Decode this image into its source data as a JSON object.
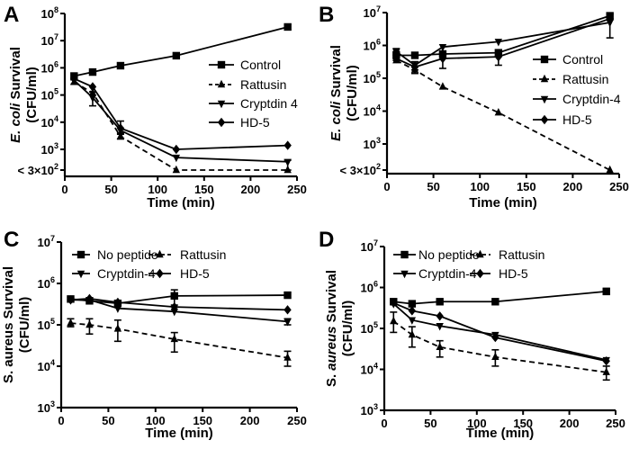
{
  "chart_data": [
    {
      "panel": "A",
      "type": "line",
      "yscale": "log",
      "xlabel": "Time (min)",
      "ylabel": [
        [
          {
            "text": "E. coli",
            "italic": true
          },
          {
            "text": " Survival",
            "italic": false
          }
        ],
        [
          {
            "text": "(CFU/ml)",
            "italic": false
          }
        ]
      ],
      "xlim": [
        0,
        250
      ],
      "xticks": [
        0,
        50,
        100,
        150,
        200,
        250
      ],
      "yticks": [
        {
          "base": "10",
          "exp": "8",
          "value": 100000000.0
        },
        {
          "base": "10",
          "exp": "7",
          "value": 10000000.0
        },
        {
          "base": "10",
          "exp": "6",
          "value": 1000000.0
        },
        {
          "base": "10",
          "exp": "5",
          "value": 100000.0
        },
        {
          "base": "10",
          "exp": "4",
          "value": 10000.0
        },
        {
          "base": "10",
          "exp": "3",
          "value": 1000.0
        }
      ],
      "floor": {
        "base": "< 3×10",
        "exp": "2",
        "value": 300
      },
      "legend_placement": "center-right",
      "series": [
        {
          "name": "Control",
          "marker": "square",
          "dashed": false,
          "x": [
            10,
            30,
            60,
            120,
            240
          ],
          "y": [
            500000.0,
            700000.0,
            1200000.0,
            2800000.0,
            32000000.0
          ],
          "err": [
            null,
            null,
            null,
            null,
            null
          ]
        },
        {
          "name": "Rattusin",
          "marker": "triangle-up",
          "dashed": true,
          "x": [
            10,
            30,
            60,
            120,
            240
          ],
          "y": [
            300000.0,
            120000.0,
            3000.0,
            300,
            300
          ],
          "err": [
            [
              250000.0,
              360000.0
            ],
            null,
            [
              2400.0,
              3600.0
            ],
            null,
            null
          ]
        },
        {
          "name": "Cryptdin 4",
          "marker": "triangle-down",
          "dashed": false,
          "x": [
            10,
            30,
            60,
            120,
            240
          ],
          "y": [
            350000.0,
            80000.0,
            5000.0,
            500.0,
            350.0
          ],
          "err": [
            null,
            [
              40000.0,
              130000.0
            ],
            [
              4000.0,
              11000.0
            ],
            null,
            [
              300.0,
              400.0
            ]
          ]
        },
        {
          "name": "HD-5",
          "marker": "diamond",
          "dashed": false,
          "x": [
            10,
            30,
            60,
            120,
            240
          ],
          "y": [
            400000.0,
            200000.0,
            6000.0,
            1000.0,
            1400.0
          ],
          "err": [
            null,
            null,
            null,
            null,
            null
          ]
        }
      ]
    },
    {
      "panel": "B",
      "type": "line",
      "yscale": "log",
      "xlabel": "Time (min)",
      "ylabel": [
        [
          {
            "text": "E. coli",
            "italic": true
          },
          {
            "text": " Survival",
            "italic": false
          }
        ],
        [
          {
            "text": "(CFU/ml)",
            "italic": false
          }
        ]
      ],
      "xlim": [
        0,
        250
      ],
      "xticks": [
        0,
        50,
        100,
        150,
        200,
        250
      ],
      "yticks": [
        {
          "base": "10",
          "exp": "7",
          "value": 10000000.0
        },
        {
          "base": "10",
          "exp": "6",
          "value": 1000000.0
        },
        {
          "base": "10",
          "exp": "5",
          "value": 100000.0
        },
        {
          "base": "10",
          "exp": "4",
          "value": 10000.0
        },
        {
          "base": "10",
          "exp": "3",
          "value": 1000.0
        }
      ],
      "floor": {
        "base": "< 3×10",
        "exp": "2",
        "value": 300
      },
      "legend_placement": "center-right",
      "series": [
        {
          "name": "Control",
          "marker": "square",
          "dashed": false,
          "x": [
            10,
            30,
            60,
            120,
            240
          ],
          "y": [
            500000.0,
            500000.0,
            550000.0,
            600000.0,
            8000000.0
          ],
          "err": [
            [
              350000.0,
              650000.0
            ],
            null,
            null,
            null,
            [
              6500000.0,
              9000000.0
            ]
          ]
        },
        {
          "name": "Rattusin",
          "marker": "triangle-up",
          "dashed": true,
          "x": [
            10,
            30,
            60,
            120,
            240
          ],
          "y": [
            350000.0,
            180000.0,
            55000.0,
            9000.0,
            300
          ],
          "err": [
            null,
            [
              140000.0,
              220000.0
            ],
            null,
            null,
            null
          ]
        },
        {
          "name": "Cryptdin-4",
          "marker": "triangle-down",
          "dashed": false,
          "x": [
            10,
            30,
            60,
            120,
            240
          ],
          "y": [
            650000.0,
            250000.0,
            900000.0,
            1300000.0,
            5000000.0
          ],
          "err": [
            [
              500000.0,
              800000.0
            ],
            [
              180000.0,
              320000.0
            ],
            null,
            null,
            [
              1700000.0,
              6000000.0
            ]
          ]
        },
        {
          "name": "HD-5",
          "marker": "diamond",
          "dashed": false,
          "x": [
            10,
            30,
            60,
            120,
            240
          ],
          "y": [
            400000.0,
            220000.0,
            400000.0,
            450000.0,
            6500000.0
          ],
          "err": [
            null,
            null,
            [
              200000.0,
              600000.0
            ],
            [
              250000.0,
              600000.0
            ],
            null
          ]
        }
      ]
    },
    {
      "panel": "C",
      "type": "line",
      "yscale": "log",
      "xlabel": "Time (min)",
      "ylabel": [
        [
          {
            "text": "S. aureus Survival",
            "italic": false
          }
        ],
        [
          {
            "text": "(CFU/ml)",
            "italic": false
          }
        ]
      ],
      "xlim": [
        0,
        250
      ],
      "xticks": [
        0,
        50,
        100,
        150,
        200,
        250
      ],
      "yticks": [
        {
          "base": "10",
          "exp": "7",
          "value": 10000000.0
        },
        {
          "base": "10",
          "exp": "6",
          "value": 1000000.0
        },
        {
          "base": "10",
          "exp": "5",
          "value": 100000.0
        },
        {
          "base": "10",
          "exp": "4",
          "value": 10000.0
        },
        {
          "base": "10",
          "exp": "3",
          "value": 1000.0
        }
      ],
      "floor": null,
      "legend_placement": "top",
      "series": [
        {
          "name": "No peptide",
          "marker": "square",
          "dashed": false,
          "x": [
            10,
            30,
            60,
            120,
            240
          ],
          "y": [
            420000.0,
            380000.0,
            330000.0,
            500000.0,
            520000.0
          ],
          "err": [
            null,
            null,
            null,
            [
              300000.0,
              700000.0
            ],
            null
          ]
        },
        {
          "name": "Rattusin",
          "marker": "triangle-up",
          "dashed": true,
          "x": [
            10,
            30,
            60,
            120,
            240
          ],
          "y": [
            110000.0,
            100000.0,
            80000.0,
            45000.0,
            16000.0
          ],
          "err": [
            [
              90000.0,
              140000.0
            ],
            [
              60000.0,
              140000.0
            ],
            [
              40000.0,
              130000.0
            ],
            [
              22000.0,
              65000.0
            ],
            [
              10000.0,
              23000.0
            ]
          ]
        },
        {
          "name": "Cryptdin-4",
          "marker": "triangle-down",
          "dashed": false,
          "x": [
            10,
            30,
            60,
            120,
            240
          ],
          "y": [
            400000.0,
            400000.0,
            250000.0,
            210000.0,
            120000.0
          ],
          "err": [
            null,
            null,
            null,
            null,
            [
              100000.0,
              140000.0
            ]
          ]
        },
        {
          "name": "HD-5",
          "marker": "diamond",
          "dashed": false,
          "x": [
            10,
            30,
            60,
            120,
            240
          ],
          "y": [
            400000.0,
            430000.0,
            350000.0,
            270000.0,
            230000.0
          ],
          "err": [
            null,
            null,
            null,
            null,
            null
          ]
        }
      ]
    },
    {
      "panel": "D",
      "type": "line",
      "yscale": "log",
      "xlabel": "Time (min)",
      "ylabel": [
        [
          {
            "text": "S. ",
            "italic": false
          },
          {
            "text": "aureus",
            "italic": true
          },
          {
            "text": " Survival",
            "italic": false
          }
        ],
        [
          {
            "text": "(CFU/ml)",
            "italic": false
          }
        ]
      ],
      "xlim": [
        0,
        250
      ],
      "xticks": [
        0,
        50,
        100,
        150,
        200,
        250
      ],
      "yticks": [
        {
          "base": "10",
          "exp": "7",
          "value": 10000000.0
        },
        {
          "base": "10",
          "exp": "6",
          "value": 1000000.0
        },
        {
          "base": "10",
          "exp": "5",
          "value": 100000.0
        },
        {
          "base": "10",
          "exp": "4",
          "value": 10000.0
        },
        {
          "base": "10",
          "exp": "3",
          "value": 1000.0
        }
      ],
      "floor": null,
      "legend_placement": "top",
      "series": [
        {
          "name": "No peptide",
          "marker": "square",
          "dashed": false,
          "x": [
            10,
            30,
            60,
            120,
            240
          ],
          "y": [
            450000.0,
            400000.0,
            450000.0,
            450000.0,
            800000.0
          ],
          "err": [
            null,
            null,
            null,
            null,
            [
              700000.0,
              950000.0
            ]
          ]
        },
        {
          "name": "Rattusin",
          "marker": "triangle-up",
          "dashed": true,
          "x": [
            10,
            30,
            60,
            120,
            240
          ],
          "y": [
            150000.0,
            70000.0,
            35000.0,
            20000.0,
            8500.0
          ],
          "err": [
            [
              80000.0,
              250000.0
            ],
            [
              35000.0,
              110000.0
            ],
            [
              20000.0,
              50000.0
            ],
            [
              12000.0,
              30000.0
            ],
            [
              5500.0,
              12000.0
            ]
          ]
        },
        {
          "name": "Cryptdin-4",
          "marker": "triangle-down",
          "dashed": false,
          "x": [
            10,
            30,
            60,
            120,
            240
          ],
          "y": [
            400000.0,
            160000.0,
            115000.0,
            70000.0,
            17000.0
          ],
          "err": [
            null,
            null,
            null,
            null,
            null
          ]
        },
        {
          "name": "HD-5",
          "marker": "diamond",
          "dashed": false,
          "x": [
            10,
            30,
            60,
            120,
            240
          ],
          "y": [
            420000.0,
            270000.0,
            200000.0,
            60000.0,
            16000.0
          ],
          "err": [
            null,
            null,
            null,
            null,
            null
          ]
        }
      ]
    }
  ]
}
